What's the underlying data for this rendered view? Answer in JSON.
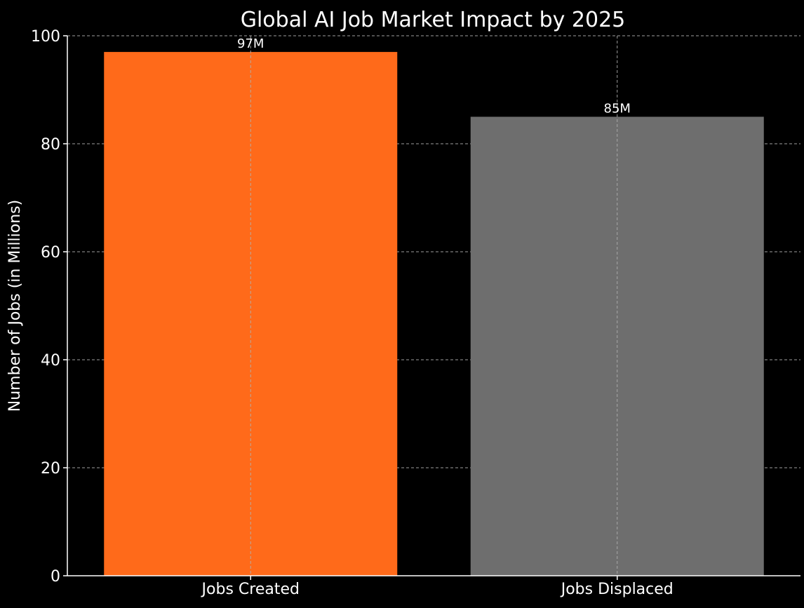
{
  "chart_data": {
    "type": "bar",
    "title": "Global AI Job Market Impact by 2025",
    "xlabel": "",
    "ylabel": "Number of Jobs (in Millions)",
    "categories": [
      "Jobs Created",
      "Jobs Displaced"
    ],
    "values": [
      97,
      85
    ],
    "value_labels": [
      "97M",
      "85M"
    ],
    "colors": [
      "#ff6a1a",
      "#6e6e6e"
    ],
    "ylim": [
      0,
      100
    ],
    "yticks": [
      "0",
      "20",
      "40",
      "60",
      "80",
      "100"
    ],
    "grid": true,
    "legend": "none"
  },
  "style": {
    "background": "#000000",
    "text_color": "#ffffff",
    "grid_color": "#b0b0b0"
  }
}
